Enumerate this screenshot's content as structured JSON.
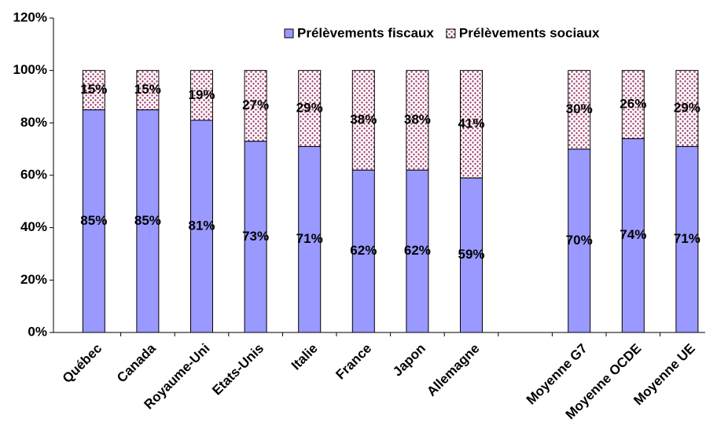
{
  "chart_data": {
    "type": "stacked_bar",
    "categories": [
      "Québec",
      "Canada",
      "Royaume-Uni",
      "Etats-Unis",
      "Italie",
      "France",
      "Japon",
      "Allemagne",
      null,
      "Moyenne G7",
      "Moyenne OCDE",
      "Moyenne UE"
    ],
    "series": [
      {
        "name": "Prélèvements fiscaux",
        "color": "#9999ff",
        "values": [
          85,
          85,
          81,
          73,
          71,
          62,
          62,
          59,
          null,
          70,
          74,
          71
        ],
        "value_labels": [
          "85%",
          "85%",
          "81%",
          "73%",
          "71%",
          "62%",
          "62%",
          "59%",
          null,
          "70%",
          "74%",
          "71%"
        ]
      },
      {
        "name": "Prélèvements sociaux",
        "color": "#993366",
        "values": [
          15,
          15,
          19,
          27,
          29,
          38,
          38,
          41,
          null,
          30,
          26,
          29
        ],
        "value_labels": [
          "15%",
          "15%",
          "19%",
          "27%",
          "29%",
          "38%",
          "38%",
          "41%",
          null,
          "30%",
          "26%",
          "29%"
        ]
      }
    ],
    "ylim": [
      0,
      120
    ],
    "yticks": [
      {
        "value": 0,
        "label": "0%"
      },
      {
        "value": 20,
        "label": "20%"
      },
      {
        "value": 40,
        "label": "40%"
      },
      {
        "value": 60,
        "label": "60%"
      },
      {
        "value": 80,
        "label": "80%"
      },
      {
        "value": 100,
        "label": "100%"
      },
      {
        "value": 120,
        "label": "120%"
      }
    ],
    "legend": "top-right"
  }
}
